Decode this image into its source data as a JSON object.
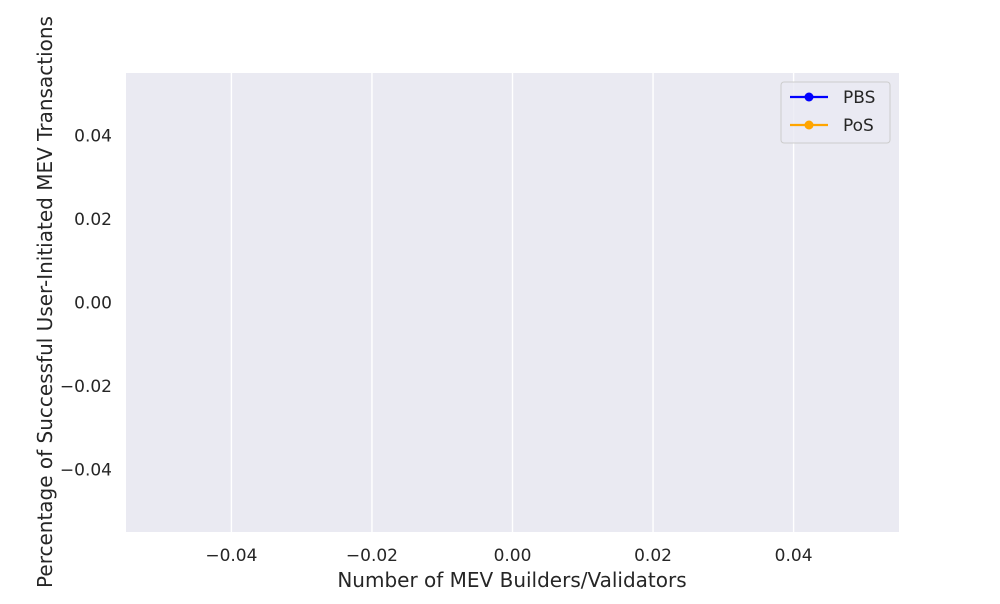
{
  "chart_data": {
    "type": "line",
    "title": "",
    "xlabel": "Number of MEV Builders/Validators",
    "ylabel": "Percentage of Successful User-Initiated MEV Transactions",
    "xlim": [
      -0.055,
      0.055
    ],
    "ylim": [
      -0.055,
      0.055
    ],
    "xticks": [
      -0.04,
      -0.02,
      0.0,
      0.02,
      0.04
    ],
    "xtick_labels": [
      "−0.04",
      "−0.02",
      "0.00",
      "0.02",
      "0.04"
    ],
    "yticks": [
      0.04,
      0.02,
      0.0,
      -0.02,
      -0.04
    ],
    "ytick_labels": [
      "0.04",
      "0.02",
      "0.00",
      "−0.02",
      "−0.04"
    ],
    "grid": true,
    "vertical_gridlines_only": true,
    "legend_position": "top-right",
    "background_color": "#eaeaf2",
    "grid_color": "#ffffff",
    "series": [
      {
        "name": "PBS",
        "color": "#0000ff",
        "marker": "circle",
        "x": [],
        "y": []
      },
      {
        "name": "PoS",
        "color": "#ffa500",
        "marker": "circle",
        "x": [],
        "y": []
      }
    ]
  }
}
